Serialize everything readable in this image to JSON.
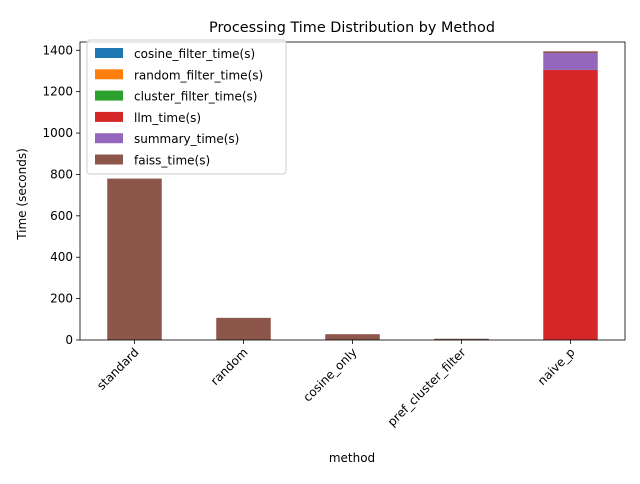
{
  "chart_data": {
    "type": "bar",
    "stacked": true,
    "title": "Processing Time Distribution by Method",
    "xlabel": "method",
    "ylabel": "Time (seconds)",
    "ylim": [
      0,
      1440
    ],
    "yticks": [
      0,
      200,
      400,
      600,
      800,
      1000,
      1200,
      1400
    ],
    "categories": [
      "standard",
      "random",
      "cosine_only",
      "pref_cluster_filter",
      "naive_p"
    ],
    "legend_position": "upper-left",
    "grid": false,
    "series": [
      {
        "name": "cosine_filter_time(s)",
        "color": "#1f77b4",
        "values": [
          0,
          0,
          0,
          3,
          0
        ]
      },
      {
        "name": "random_filter_time(s)",
        "color": "#ff7f0e",
        "values": [
          0,
          0,
          0,
          0,
          0
        ]
      },
      {
        "name": "cluster_filter_time(s)",
        "color": "#2ca02c",
        "values": [
          0,
          0,
          0,
          2,
          0
        ]
      },
      {
        "name": "llm_time(s)",
        "color": "#d62728",
        "values": [
          0,
          0,
          0,
          0,
          1305
        ]
      },
      {
        "name": "summary_time(s)",
        "color": "#9467bd",
        "values": [
          0,
          0,
          0,
          0,
          82
        ]
      },
      {
        "name": "faiss_time(s)",
        "color": "#8c564b",
        "values": [
          780,
          107,
          28,
          1,
          8
        ]
      }
    ]
  }
}
